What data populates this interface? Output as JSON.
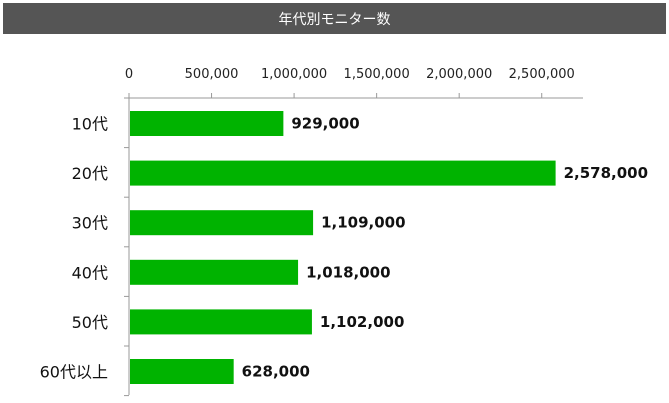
{
  "colors": {
    "title_bg": "#555555",
    "bar": "#00b300",
    "axis": "#999999"
  },
  "chart_data": {
    "type": "bar",
    "orientation": "horizontal",
    "title": "年代別モニター数",
    "categories": [
      "10代",
      "20代",
      "30代",
      "40代",
      "50代",
      "60代以上"
    ],
    "values": [
      929000,
      2578000,
      1109000,
      1018000,
      1102000,
      628000
    ],
    "value_labels": [
      "929,000",
      "2,578,000",
      "1,109,000",
      "1,018,000",
      "1,102,000",
      "628,000"
    ],
    "ticks": [
      0,
      500000,
      1000000,
      1500000,
      2000000,
      2500000
    ],
    "tick_labels": [
      "0",
      "500,000",
      "1,000,000",
      "1,500,000",
      "2,000,000",
      "2,500,000"
    ],
    "xlim": [
      0,
      2750000
    ],
    "axis_position": "top",
    "grid": false,
    "legend": false
  }
}
